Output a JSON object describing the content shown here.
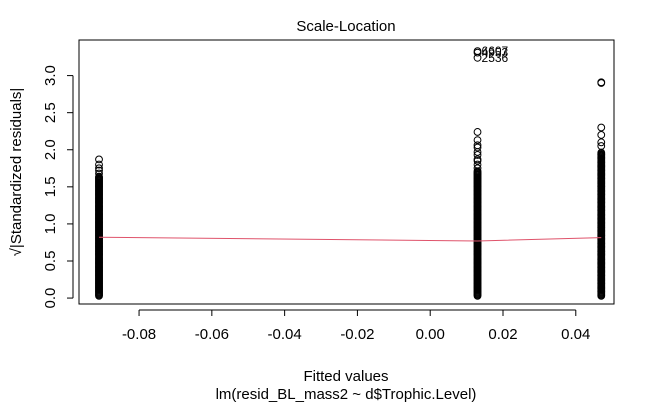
{
  "chart_data": {
    "type": "scatter",
    "title": "Scale-Location",
    "xlabel": "Fitted values",
    "ylabel": "√|Standardized residuals|",
    "subtitle": "lm(resid_BL_mass2 ~ d$Trophic.Level)",
    "xlim": [
      -0.0965,
      0.0505
    ],
    "ylim": [
      -0.08,
      3.48
    ],
    "x_ticks": [
      -0.08,
      -0.06,
      -0.04,
      -0.02,
      0.0,
      0.02,
      0.04
    ],
    "x_tick_labels": [
      "-0.08",
      "-0.06",
      "-0.04",
      "-0.02",
      "0.00",
      "0.02",
      "0.04"
    ],
    "y_ticks": [
      0.0,
      0.5,
      1.0,
      1.5,
      2.0,
      2.5,
      3.0
    ],
    "y_tick_labels": [
      "0.0",
      "0.5",
      "1.0",
      "1.5",
      "2.0",
      "2.5",
      "3.0"
    ],
    "grid": false,
    "marker": "open-circle",
    "series": [
      {
        "x": -0.091,
        "y_range": [
          0.03,
          1.64
        ],
        "extra_y": [
          1.68,
          1.72,
          1.75,
          1.8,
          1.87
        ]
      },
      {
        "x": 0.013,
        "y_range": [
          0.03,
          1.72
        ],
        "extra_y": [
          1.75,
          1.8,
          1.85,
          1.87,
          1.93,
          1.97,
          2.03,
          2.06,
          2.13,
          2.24,
          3.24,
          3.31,
          3.33
        ]
      },
      {
        "x": 0.047,
        "y_range": [
          0.03,
          1.97
        ],
        "extra_y": [
          2.05,
          2.1,
          2.2,
          2.3,
          2.9,
          2.91
        ]
      }
    ],
    "smoother": {
      "color": "#DF536B",
      "x": [
        -0.091,
        0.013,
        0.047
      ],
      "y": [
        0.82,
        0.77,
        0.815
      ]
    },
    "annotations": [
      {
        "text": "6607",
        "x": 0.013,
        "y": 3.335
      },
      {
        "text": "4953",
        "x": 0.013,
        "y": 3.31
      },
      {
        "text": "2536",
        "x": 0.013,
        "y": 3.24
      }
    ]
  }
}
